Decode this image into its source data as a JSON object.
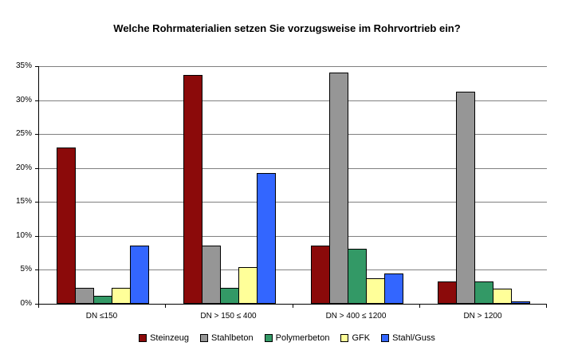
{
  "chart_data": {
    "type": "bar",
    "title": "Welche Rohrmaterialien setzen Sie vorzugsweise im Rohrvortrieb ein?",
    "categories": [
      "DN ≤150",
      "DN > 150 ≤ 400",
      "DN > 400 ≤ 1200",
      "DN > 1200"
    ],
    "series": [
      {
        "name": "Steinzeug",
        "color": "#8B0A0A",
        "values": [
          23.0,
          33.7,
          8.6,
          3.3
        ]
      },
      {
        "name": "Stahlbeton",
        "color": "#969696",
        "values": [
          2.4,
          8.6,
          34.1,
          31.3
        ]
      },
      {
        "name": "Polymerbeton",
        "color": "#339966",
        "values": [
          1.2,
          2.4,
          8.1,
          3.3
        ]
      },
      {
        "name": "GFK",
        "color": "#FFFF99",
        "values": [
          2.4,
          5.4,
          3.7,
          2.2
        ]
      },
      {
        "name": "Stahl/Guss",
        "color": "#3366FF",
        "values": [
          8.6,
          19.3,
          4.5,
          0.4
        ]
      }
    ],
    "xlabel": "",
    "ylabel": "",
    "ylim": [
      0,
      35
    ],
    "ytick_step": 5,
    "ytick_labels": [
      "0%",
      "5%",
      "10%",
      "15%",
      "20%",
      "25%",
      "30%",
      "35%"
    ],
    "grid": true,
    "legend_position": "bottom",
    "colors": {
      "axis": "#000000",
      "gridline": "#808080",
      "background": "#ffffff"
    }
  }
}
